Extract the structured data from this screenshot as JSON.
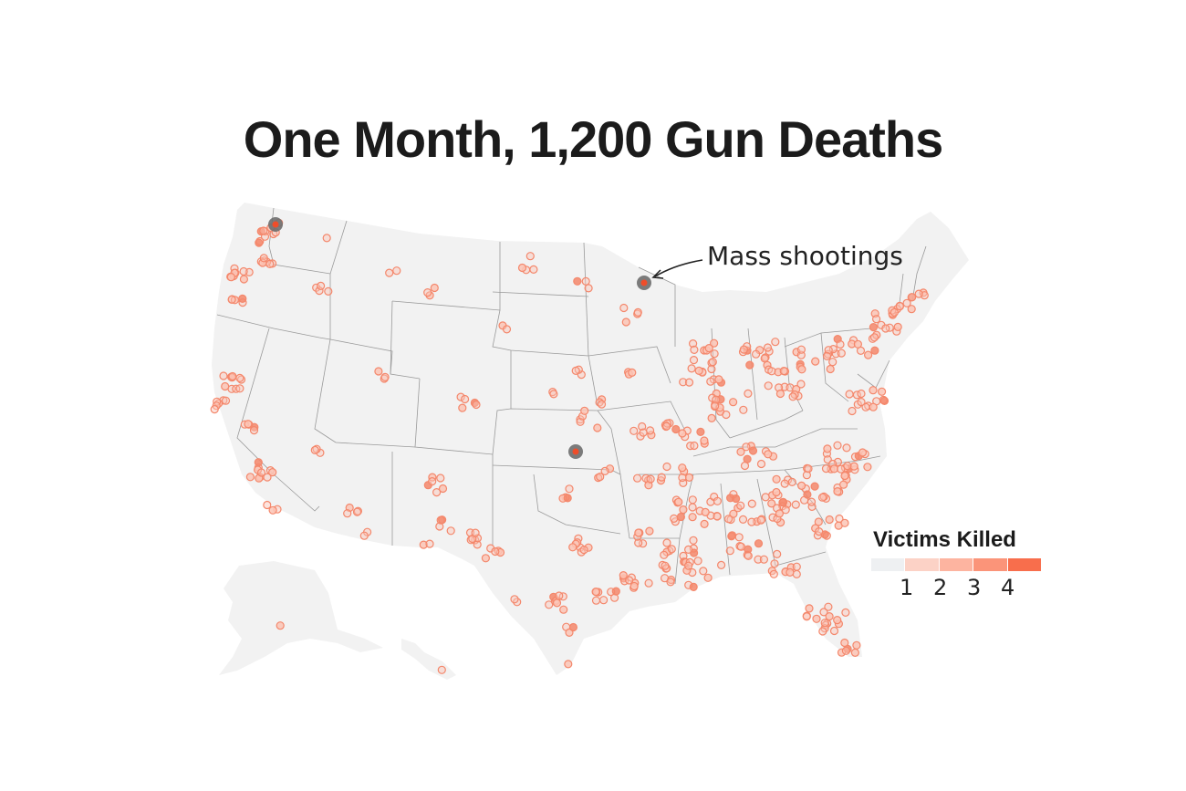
{
  "title": "One Month, 1,200 Gun Deaths",
  "annotation": {
    "label": "Mass shootings"
  },
  "legend": {
    "title": "Victims Killed",
    "levels": [
      {
        "value": "",
        "color": "#eef0f2"
      },
      {
        "value": "1",
        "color": "#fcd2c6"
      },
      {
        "value": "2",
        "color": "#fdb4a0"
      },
      {
        "value": "3",
        "color": "#fb9479"
      },
      {
        "value": "4",
        "color": "#f86e4c"
      }
    ]
  },
  "colors": {
    "land": "#f2f2f2",
    "border": "#9a9a9a",
    "dot_stroke": "#f4876b",
    "dot_fill": "#fbc4b5",
    "mass_shooting_ring": "#6e6e6e",
    "mass_shooting_core": "#ef4d2a"
  }
}
